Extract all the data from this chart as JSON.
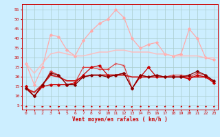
{
  "x": [
    0,
    1,
    2,
    3,
    4,
    5,
    6,
    7,
    8,
    9,
    10,
    11,
    12,
    13,
    14,
    15,
    16,
    17,
    18,
    19,
    20,
    21,
    22,
    23
  ],
  "series": [
    {
      "color": "#ffaaaa",
      "alpha": 1.0,
      "linewidth": 0.9,
      "marker": "D",
      "markersize": 2.0,
      "y": [
        27,
        16,
        25,
        42,
        41,
        34,
        31,
        39,
        44,
        48,
        50,
        55,
        51,
        40,
        35,
        37,
        38,
        32,
        31,
        32,
        45,
        40,
        30,
        29
      ]
    },
    {
      "color": "#ffbbbb",
      "alpha": 0.85,
      "linewidth": 1.2,
      "marker": null,
      "markersize": 0,
      "y": [
        27,
        22,
        27,
        32,
        33,
        32,
        31,
        31,
        32,
        33,
        33,
        34,
        34,
        33,
        33,
        33,
        32,
        32,
        31,
        31,
        31,
        31,
        30,
        30
      ]
    },
    {
      "color": "#dd4444",
      "alpha": 1.0,
      "linewidth": 0.9,
      "marker": "+",
      "markersize": 3.5,
      "y": [
        14,
        10,
        15,
        23,
        21,
        16,
        17,
        25,
        25,
        24,
        24,
        27,
        26,
        14,
        21,
        20,
        21,
        20,
        21,
        21,
        20,
        22,
        21,
        17
      ]
    },
    {
      "color": "#cc2222",
      "alpha": 1.0,
      "linewidth": 1.4,
      "marker": null,
      "markersize": 0,
      "y": [
        14,
        12,
        16,
        21,
        20,
        18,
        18,
        20,
        21,
        21,
        21,
        21,
        21,
        20,
        20,
        20,
        20,
        20,
        20,
        20,
        20,
        20,
        20,
        18
      ]
    },
    {
      "color": "#cc0000",
      "alpha": 1.0,
      "linewidth": 0.9,
      "marker": "D",
      "markersize": 2.0,
      "y": [
        15,
        10,
        15,
        16,
        16,
        16,
        17,
        21,
        25,
        26,
        21,
        21,
        22,
        14,
        20,
        25,
        20,
        20,
        20,
        20,
        19,
        21,
        20,
        17
      ]
    },
    {
      "color": "#880000",
      "alpha": 1.0,
      "linewidth": 0.9,
      "marker": "D",
      "markersize": 2.0,
      "y": [
        14,
        10,
        16,
        22,
        21,
        16,
        16,
        20,
        21,
        21,
        20,
        21,
        22,
        14,
        21,
        20,
        21,
        20,
        20,
        20,
        21,
        23,
        21,
        18
      ]
    }
  ],
  "xlabel": "Vent moyen/en rafales ( km/h )",
  "ylabel_ticks": [
    5,
    10,
    15,
    20,
    25,
    30,
    35,
    40,
    45,
    50,
    55
  ],
  "xlim": [
    -0.5,
    23.5
  ],
  "ylim": [
    3,
    58
  ],
  "bg_color": "#cceeff",
  "grid_color": "#aacccc",
  "tick_color": "#cc0000",
  "label_color": "#cc0000",
  "wind_angles": [
    225,
    225,
    90,
    135,
    90,
    135,
    225,
    225,
    225,
    225,
    225,
    225,
    225,
    45,
    225,
    225,
    225,
    225,
    225,
    225,
    225,
    225,
    225,
    225
  ]
}
